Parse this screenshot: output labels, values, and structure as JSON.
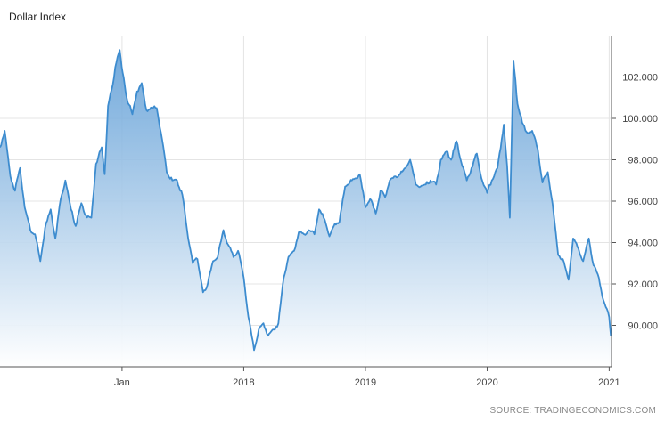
{
  "chart_data": {
    "type": "area",
    "title": "Dollar Index",
    "source": "SOURCE: TRADINGECONOMICS.COM",
    "x_ticks": [
      {
        "label": "Jan",
        "date": "2017-01-01"
      },
      {
        "label": "2018",
        "date": "2018-01-01"
      },
      {
        "label": "2019",
        "date": "2019-01-01"
      },
      {
        "label": "2020",
        "date": "2020-01-01"
      },
      {
        "label": "2021",
        "date": "2021-01-01"
      }
    ],
    "xlim": [
      "2016-01-01",
      "2021-01-08"
    ],
    "y_ticks": [
      "90.000",
      "92.000",
      "94.000",
      "96.000",
      "98.000",
      "100.000",
      "102.000"
    ],
    "ylim": [
      88.0,
      104.0
    ],
    "y_axis_side": "right",
    "grid": true,
    "colors": {
      "line": "#3d8ccf",
      "fill_top": "#5b9bd5",
      "fill_bottom": "#ffffff",
      "grid": "#e4e4e4"
    },
    "series": [
      {
        "x": [
          "2016-01-01",
          "2016-01-15",
          "2016-02-01",
          "2016-02-15",
          "2016-03-01",
          "2016-03-15",
          "2016-04-01",
          "2016-04-15",
          "2016-05-01",
          "2016-05-15",
          "2016-06-01",
          "2016-06-15",
          "2016-07-01",
          "2016-07-15",
          "2016-08-01",
          "2016-08-15",
          "2016-09-01",
          "2016-09-15",
          "2016-10-01",
          "2016-10-15",
          "2016-11-01",
          "2016-11-10",
          "2016-11-20",
          "2016-12-01",
          "2016-12-15",
          "2016-12-25",
          "2017-01-03",
          "2017-01-15",
          "2017-02-01",
          "2017-02-15",
          "2017-03-01",
          "2017-03-15",
          "2017-04-01",
          "2017-04-15",
          "2017-05-01",
          "2017-05-15",
          "2017-06-01",
          "2017-06-15",
          "2017-07-01",
          "2017-07-15",
          "2017-08-01",
          "2017-08-15",
          "2017-09-01",
          "2017-09-08",
          "2017-09-15",
          "2017-10-01",
          "2017-10-15",
          "2017-11-01",
          "2017-11-15",
          "2017-12-01",
          "2017-12-15",
          "2018-01-01",
          "2018-01-15",
          "2018-02-01",
          "2018-02-15",
          "2018-03-01",
          "2018-03-15",
          "2018-04-01",
          "2018-04-15",
          "2018-05-01",
          "2018-05-15",
          "2018-06-01",
          "2018-06-15",
          "2018-07-01",
          "2018-07-15",
          "2018-08-01",
          "2018-08-15",
          "2018-09-01",
          "2018-09-15",
          "2018-10-01",
          "2018-10-15",
          "2018-11-01",
          "2018-11-15",
          "2018-12-01",
          "2018-12-15",
          "2019-01-01",
          "2019-01-15",
          "2019-02-01",
          "2019-02-15",
          "2019-03-01",
          "2019-03-15",
          "2019-04-01",
          "2019-04-15",
          "2019-05-01",
          "2019-05-15",
          "2019-06-01",
          "2019-06-15",
          "2019-07-01",
          "2019-07-15",
          "2019-08-01",
          "2019-08-15",
          "2019-09-01",
          "2019-09-15",
          "2019-10-01",
          "2019-10-15",
          "2019-11-01",
          "2019-11-15",
          "2019-12-01",
          "2019-12-15",
          "2020-01-01",
          "2020-01-15",
          "2020-02-01",
          "2020-02-20",
          "2020-03-01",
          "2020-03-09",
          "2020-03-20",
          "2020-04-01",
          "2020-04-15",
          "2020-05-01",
          "2020-05-15",
          "2020-06-01",
          "2020-06-15",
          "2020-07-01",
          "2020-07-15",
          "2020-08-01",
          "2020-08-15",
          "2020-09-01",
          "2020-09-15",
          "2020-10-01",
          "2020-10-15",
          "2020-11-01",
          "2020-11-15",
          "2020-12-01",
          "2020-12-15",
          "2021-01-01",
          "2021-01-06"
        ],
        "y": [
          98.6,
          99.4,
          97.2,
          96.5,
          97.6,
          95.7,
          94.6,
          94.4,
          93.1,
          94.7,
          95.6,
          94.2,
          96.1,
          97.0,
          95.6,
          94.8,
          95.9,
          95.3,
          95.2,
          97.8,
          98.6,
          97.3,
          100.6,
          101.4,
          102.7,
          103.3,
          102.2,
          101.0,
          100.2,
          101.3,
          101.7,
          100.4,
          100.5,
          100.5,
          99.0,
          97.4,
          97.0,
          97.0,
          96.3,
          94.6,
          93.0,
          93.2,
          91.6,
          91.7,
          92.0,
          93.1,
          93.3,
          94.6,
          93.9,
          93.3,
          93.6,
          92.3,
          90.4,
          88.8,
          89.8,
          90.1,
          89.5,
          89.8,
          90.1,
          92.3,
          93.3,
          93.6,
          94.5,
          94.4,
          94.6,
          94.4,
          95.6,
          95.1,
          94.3,
          94.9,
          95.0,
          96.7,
          96.9,
          97.1,
          97.3,
          95.7,
          96.1,
          95.4,
          96.5,
          96.2,
          97.0,
          97.2,
          97.3,
          97.6,
          98.0,
          96.8,
          96.7,
          96.8,
          97.0,
          96.8,
          98.0,
          98.4,
          98.0,
          98.9,
          97.9,
          97.0,
          97.6,
          98.3,
          97.1,
          96.4,
          97.0,
          97.6,
          99.7,
          97.7,
          95.2,
          102.8,
          100.7,
          99.8,
          99.3,
          99.4,
          98.5,
          96.9,
          97.4,
          95.9,
          93.4,
          93.2,
          92.2,
          94.2,
          93.7,
          93.1,
          94.2,
          92.9,
          92.3,
          91.2,
          90.4,
          89.5
        ]
      }
    ]
  }
}
